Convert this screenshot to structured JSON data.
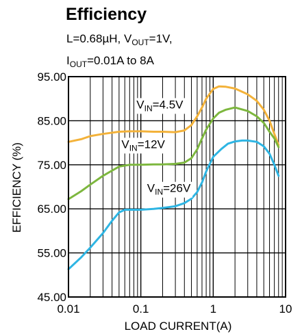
{
  "chart_data": {
    "type": "line",
    "title": "Efficiency",
    "subtitle_line1": {
      "a": "L=0.68µH, V",
      "b": "OUT",
      "c": "=1V,"
    },
    "subtitle_line2": {
      "a": "I",
      "b": "OUT",
      "c": "=0.01A to 8A"
    },
    "xlabel": "LOAD CURRENT(A)",
    "ylabel": "EFFICIENCY (%)",
    "x_scale": "log",
    "xlim": [
      0.01,
      10
    ],
    "ylim": [
      45,
      95
    ],
    "x_ticks": [
      {
        "value": 0.01,
        "label": "0.01"
      },
      {
        "value": 0.1,
        "label": "0.1"
      },
      {
        "value": 1,
        "label": "1"
      },
      {
        "value": 10,
        "label": "10"
      }
    ],
    "y_ticks": [
      {
        "value": 45,
        "label": "45.00"
      },
      {
        "value": 55,
        "label": "55.00"
      },
      {
        "value": 65,
        "label": "65.00"
      },
      {
        "value": 75,
        "label": "75.00"
      },
      {
        "value": 85,
        "label": "85.00"
      },
      {
        "value": 95,
        "label": "95.00"
      }
    ],
    "grid": true,
    "series": [
      {
        "name": "VIN=4.5V",
        "label": {
          "a": "V",
          "b": "IN",
          "c": "=4.5V"
        },
        "color": "#F3B23A",
        "points": [
          [
            0.01,
            80.2
          ],
          [
            0.015,
            80.8
          ],
          [
            0.02,
            81.5
          ],
          [
            0.03,
            82.0
          ],
          [
            0.05,
            82.5
          ],
          [
            0.07,
            82.6
          ],
          [
            0.1,
            82.6
          ],
          [
            0.15,
            82.5
          ],
          [
            0.2,
            82.5
          ],
          [
            0.3,
            82.4
          ],
          [
            0.4,
            82.8
          ],
          [
            0.5,
            84.0
          ],
          [
            0.6,
            86.0
          ],
          [
            0.7,
            88.0
          ],
          [
            0.8,
            90.0
          ],
          [
            1.0,
            92.2
          ],
          [
            1.2,
            92.8
          ],
          [
            1.5,
            92.7
          ],
          [
            2.0,
            92.3
          ],
          [
            3.0,
            91.0
          ],
          [
            4.0,
            89.5
          ],
          [
            5.0,
            87.5
          ],
          [
            6.0,
            85.0
          ],
          [
            7.0,
            82.0
          ],
          [
            8.0,
            79.5
          ]
        ]
      },
      {
        "name": "VIN=12V",
        "label": {
          "a": "V",
          "b": "IN",
          "c": "=12V"
        },
        "color": "#7DB73E",
        "points": [
          [
            0.01,
            67.2
          ],
          [
            0.015,
            69.0
          ],
          [
            0.02,
            70.5
          ],
          [
            0.03,
            72.5
          ],
          [
            0.05,
            74.6
          ],
          [
            0.07,
            75.0
          ],
          [
            0.1,
            75.0
          ],
          [
            0.15,
            75.1
          ],
          [
            0.2,
            75.1
          ],
          [
            0.3,
            75.2
          ],
          [
            0.4,
            75.5
          ],
          [
            0.5,
            76.5
          ],
          [
            0.6,
            78.5
          ],
          [
            0.7,
            81.0
          ],
          [
            0.8,
            83.0
          ],
          [
            1.0,
            85.5
          ],
          [
            1.2,
            86.8
          ],
          [
            1.5,
            87.5
          ],
          [
            2.0,
            88.0
          ],
          [
            3.0,
            87.2
          ],
          [
            4.0,
            86.0
          ],
          [
            5.0,
            84.5
          ],
          [
            6.0,
            82.5
          ],
          [
            7.0,
            81.0
          ],
          [
            8.0,
            79.0
          ]
        ]
      },
      {
        "name": "VIN=26V",
        "label": {
          "a": "V",
          "b": "IN",
          "c": "=26V"
        },
        "color": "#2EB5E3",
        "points": [
          [
            0.01,
            51.3
          ],
          [
            0.015,
            54.0
          ],
          [
            0.02,
            56.2
          ],
          [
            0.03,
            59.5
          ],
          [
            0.04,
            62.3
          ],
          [
            0.05,
            64.2
          ],
          [
            0.06,
            64.8
          ],
          [
            0.08,
            64.8
          ],
          [
            0.1,
            64.8
          ],
          [
            0.15,
            65.0
          ],
          [
            0.2,
            65.2
          ],
          [
            0.3,
            65.6
          ],
          [
            0.4,
            66.3
          ],
          [
            0.5,
            67.3
          ],
          [
            0.6,
            68.8
          ],
          [
            0.7,
            71.0
          ],
          [
            0.8,
            73.5
          ],
          [
            1.0,
            76.8
          ],
          [
            1.3,
            78.6
          ],
          [
            1.6,
            79.8
          ],
          [
            2.0,
            80.3
          ],
          [
            2.5,
            80.5
          ],
          [
            3.0,
            80.5
          ],
          [
            4.0,
            80.2
          ],
          [
            5.0,
            79.2
          ],
          [
            6.0,
            77.5
          ],
          [
            7.0,
            75.0
          ],
          [
            8.0,
            72.5
          ]
        ]
      }
    ]
  }
}
